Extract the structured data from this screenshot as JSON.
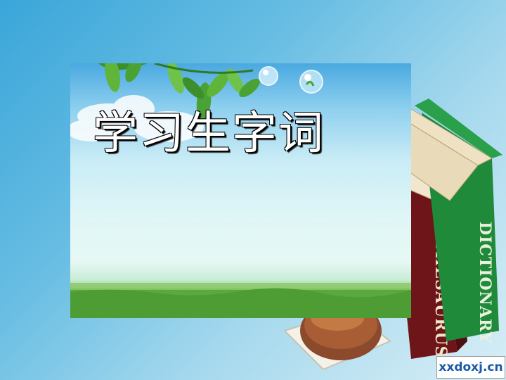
{
  "slide": {
    "title": "学习生字词",
    "watermark": "xxdoxj.cn"
  },
  "books": {
    "green_spine_text": "DICTIONARY",
    "red_spine_text": "THESAURUS"
  },
  "colors": {
    "background_top": "#3aa6d9",
    "background_bottom": "#d8eef6",
    "green_book": "#1e8a3a",
    "red_book": "#7a1a1e",
    "title_text": "#ffffff",
    "watermark_text": "#1c5aa8"
  }
}
